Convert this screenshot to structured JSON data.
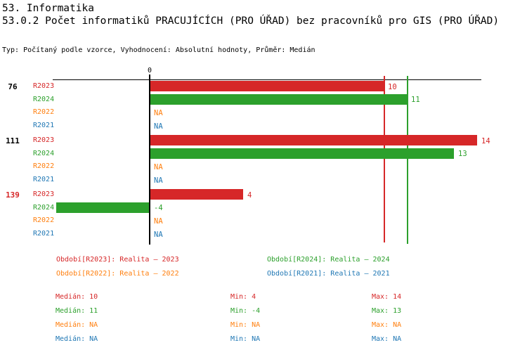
{
  "header": {
    "title_line1": "53. Informatika",
    "title_line2": "53.0.2 Počet informatiků PRACUJÍCÍCH (PRO ÚŘAD) bez pracovníků pro GIS (PRO ÚŘAD)",
    "meta": "Typ: Počítaný podle vzorce, Vyhodnocení: Absolutní hodnoty, Průměr: Medián"
  },
  "colors": {
    "R2023": "#d62728",
    "R2024": "#2ca02c",
    "R2022": "#ff7f0e",
    "R2021": "#1f77b4",
    "axis": "#000000"
  },
  "chart_data": {
    "type": "bar",
    "orientation": "horizontal",
    "title": "53.0.2 Počet informatiků PRACUJÍCÍCH (PRO ÚŘAD) bez pracovníků pro GIS (PRO ÚŘAD)",
    "xlim": [
      -4,
      14
    ],
    "zero_label": "0",
    "na_text": "NA",
    "grid": false,
    "series_order": [
      "R2023",
      "R2024",
      "R2022",
      "R2021"
    ],
    "groups": [
      {
        "label": "76",
        "label_color": "#000000",
        "rows": [
          {
            "series": "R2023",
            "value": 10,
            "value_label": "10"
          },
          {
            "series": "R2024",
            "value": 11,
            "value_label": "11"
          },
          {
            "series": "R2022",
            "value": null,
            "value_label": "NA"
          },
          {
            "series": "R2021",
            "value": null,
            "value_label": "NA"
          }
        ]
      },
      {
        "label": "111",
        "label_color": "#000000",
        "rows": [
          {
            "series": "R2023",
            "value": 14,
            "value_label": "14"
          },
          {
            "series": "R2024",
            "value": 13,
            "value_label": "13"
          },
          {
            "series": "R2022",
            "value": null,
            "value_label": "NA"
          },
          {
            "series": "R2021",
            "value": null,
            "value_label": "NA"
          }
        ]
      },
      {
        "label": "139",
        "label_color": "#d62728",
        "rows": [
          {
            "series": "R2023",
            "value": 4,
            "value_label": "4"
          },
          {
            "series": "R2024",
            "value": -4,
            "value_label": "-4"
          },
          {
            "series": "R2022",
            "value": null,
            "value_label": "NA"
          },
          {
            "series": "R2021",
            "value": null,
            "value_label": "NA"
          }
        ]
      }
    ],
    "median_lines": [
      {
        "series": "R2023",
        "value": 10
      },
      {
        "series": "R2024",
        "value": 11
      }
    ]
  },
  "legend": {
    "items": [
      {
        "series": "R2023",
        "label": "Období[R2023]: Realita – 2023"
      },
      {
        "series": "R2024",
        "label": "Období[R2024]: Realita – 2024"
      },
      {
        "series": "R2022",
        "label": "Období[R2022]: Realita – 2022"
      },
      {
        "series": "R2021",
        "label": "Období[R2021]: Realita – 2021"
      }
    ]
  },
  "stats": {
    "rows": [
      {
        "series": "R2023",
        "median": "Medián: 10",
        "min": "Min: 4",
        "max": "Max: 14"
      },
      {
        "series": "R2024",
        "median": "Medián: 11",
        "min": "Min: -4",
        "max": "Max: 13"
      },
      {
        "series": "R2022",
        "median": "Medián: NA",
        "min": "Min: NA",
        "max": "Max: NA"
      },
      {
        "series": "R2021",
        "median": "Medián: NA",
        "min": "Min: NA",
        "max": "Max: NA"
      }
    ]
  }
}
